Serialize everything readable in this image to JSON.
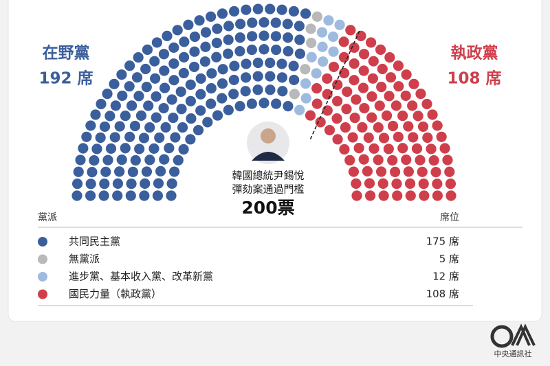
{
  "chart_data": {
    "type": "parliament",
    "series": [
      {
        "name": "共同民主黨",
        "color": "#3b5f9d",
        "values": [
          175
        ],
        "value_labels": [
          "175 席"
        ]
      },
      {
        "name": "無黨派",
        "color": "#b9b9bb",
        "values": [
          5
        ],
        "value_labels": [
          "5 席"
        ]
      },
      {
        "name": "進步黨、基本收入黨、改革新黨",
        "color": "#9fbadf",
        "values": [
          12
        ],
        "value_labels": [
          "12 席"
        ]
      },
      {
        "name": "國民力量（執政黨）",
        "color": "#cf3f4b",
        "values": [
          108
        ],
        "value_labels": [
          "108 席"
        ]
      }
    ],
    "blocs": {
      "names": [
        "在野黨",
        "執政黨"
      ],
      "values": [
        192,
        108
      ],
      "value_labels": [
        "192 席",
        "108 席"
      ]
    },
    "threshold": {
      "lines": [
        "韓國總統尹錫悅",
        "彈劾案通過門檻"
      ],
      "value": 200,
      "value_label": "200票"
    },
    "table_headers": [
      "黨派",
      "席位"
    ],
    "source": "中央通訊社"
  }
}
